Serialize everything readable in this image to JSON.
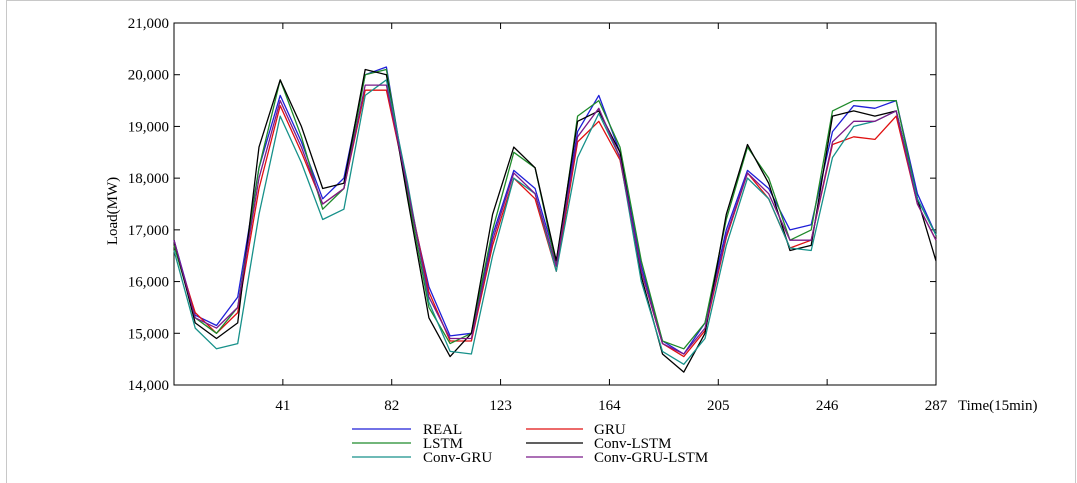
{
  "chart_data": {
    "type": "line",
    "xlabel": "Time(15min)",
    "ylabel": "Load(MW)",
    "xlim": [
      0,
      287
    ],
    "ylim": [
      14000,
      21000
    ],
    "x_ticks": [
      41,
      82,
      123,
      164,
      205,
      246,
      287
    ],
    "y_ticks": [
      14000,
      15000,
      16000,
      17000,
      18000,
      19000,
      20000,
      21000
    ],
    "x_tick_labels": [
      "41",
      "82",
      "123",
      "164",
      "205",
      "246",
      "287"
    ],
    "y_tick_labels": [
      "14,000",
      "15,000",
      "16,000",
      "17,000",
      "18,000",
      "19,000",
      "20,000",
      "21,000"
    ],
    "grid": false,
    "legend_position": "bottom",
    "x": [
      0,
      8,
      16,
      24,
      32,
      40,
      48,
      56,
      64,
      72,
      80,
      88,
      96,
      104,
      112,
      120,
      128,
      136,
      144,
      152,
      160,
      168,
      176,
      184,
      192,
      200,
      208,
      216,
      224,
      232,
      240,
      248,
      256,
      264,
      272,
      280,
      287
    ],
    "series": [
      {
        "name": "REAL",
        "color": "#1f1fd8",
        "values": [
          16800,
          15350,
          15150,
          15700,
          18200,
          19600,
          18700,
          17600,
          18000,
          20000,
          20150,
          17700,
          15900,
          14950,
          15000,
          16900,
          18150,
          17800,
          16400,
          18900,
          19600,
          18500,
          16300,
          14850,
          14600,
          15200,
          17000,
          18150,
          17800,
          17000,
          17100,
          18900,
          19400,
          19350,
          19500,
          17700,
          16900
        ]
      },
      {
        "name": "GRU",
        "color": "#e01010",
        "values": [
          16700,
          15400,
          15000,
          15400,
          17800,
          19400,
          18500,
          17500,
          17800,
          19700,
          19700,
          17800,
          15800,
          14850,
          14850,
          16700,
          18000,
          17600,
          16200,
          18700,
          19100,
          18350,
          16200,
          14800,
          14550,
          15050,
          16850,
          18100,
          17600,
          16650,
          16800,
          18650,
          18800,
          18750,
          19200,
          17500,
          16800
        ]
      },
      {
        "name": "LSTM",
        "color": "#1f8a2a",
        "values": [
          16700,
          15300,
          15000,
          15500,
          18200,
          19900,
          18800,
          17400,
          17800,
          20000,
          20100,
          17700,
          15500,
          14800,
          15000,
          17000,
          18500,
          18200,
          16300,
          19200,
          19500,
          18600,
          16400,
          14850,
          14700,
          15200,
          17200,
          18600,
          18000,
          16800,
          17000,
          19300,
          19500,
          19500,
          19500,
          17600,
          16900
        ]
      },
      {
        "name": "Conv-LSTM",
        "color": "#000000",
        "values": [
          16800,
          15200,
          14900,
          15200,
          18600,
          19900,
          19000,
          17800,
          17900,
          20100,
          20000,
          17600,
          15300,
          14550,
          15000,
          17300,
          18600,
          18200,
          16400,
          19100,
          19300,
          18500,
          16100,
          14600,
          14250,
          15000,
          17300,
          18650,
          17900,
          16600,
          16700,
          19200,
          19300,
          19200,
          19300,
          17600,
          16400
        ]
      },
      {
        "name": "Conv-GRU",
        "color": "#17918a",
        "values": [
          16600,
          15100,
          14700,
          14800,
          17300,
          19200,
          18300,
          17200,
          17400,
          19600,
          19900,
          17900,
          15600,
          14650,
          14600,
          16500,
          18000,
          17700,
          16200,
          18400,
          19250,
          18400,
          16000,
          14650,
          14400,
          14900,
          16700,
          18000,
          17600,
          16650,
          16600,
          18400,
          19000,
          19100,
          19300,
          17600,
          16900
        ]
      },
      {
        "name": "Conv-GRU-LSTM",
        "color": "#7a1a8a",
        "values": [
          16800,
          15300,
          15100,
          15500,
          18000,
          19500,
          18600,
          17500,
          17800,
          19800,
          19800,
          17800,
          15700,
          14900,
          14900,
          16800,
          18100,
          17700,
          16300,
          18800,
          19350,
          18400,
          16200,
          14800,
          14600,
          15100,
          16900,
          18100,
          17700,
          16800,
          16800,
          18700,
          19100,
          19100,
          19300,
          17500,
          16800
        ]
      }
    ]
  }
}
